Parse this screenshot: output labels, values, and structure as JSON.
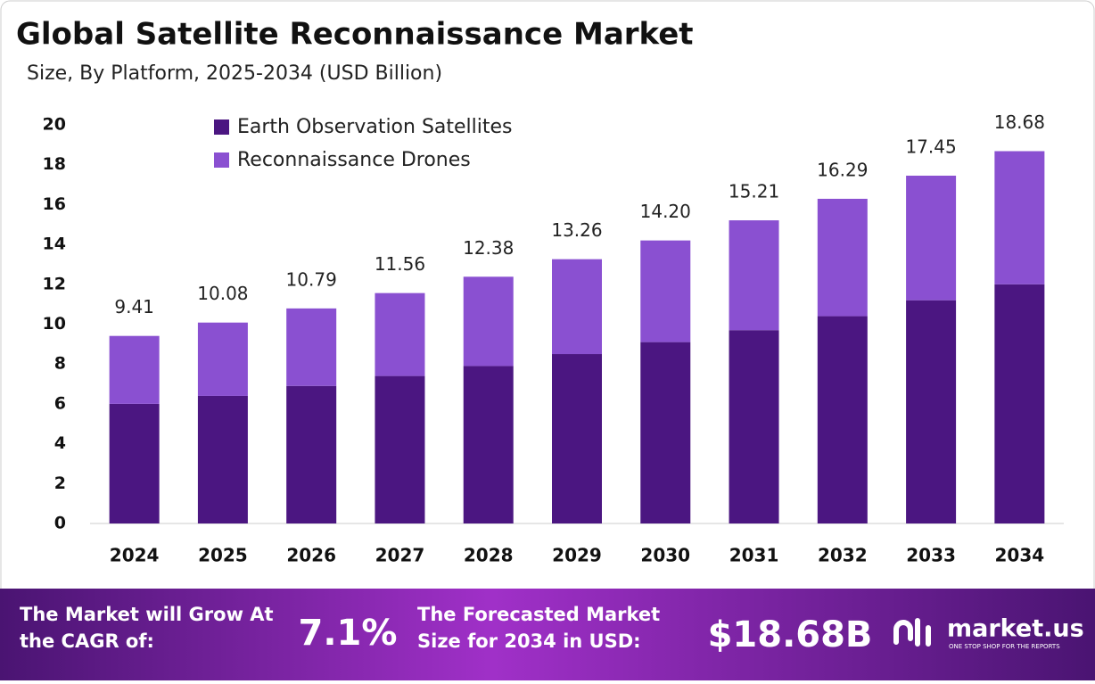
{
  "chart_data": {
    "type": "stacked_bar",
    "title": "Global Satellite Reconnaissance Market",
    "subtitle": "Size, By Platform, 2025-2034 (USD Billion)",
    "categories": [
      "2024",
      "2025",
      "2026",
      "2027",
      "2028",
      "2029",
      "2030",
      "2031",
      "2032",
      "2033",
      "2034"
    ],
    "series": [
      {
        "name": "Earth Observation Satellites",
        "color": "#4b1681",
        "values": [
          6.0,
          6.4,
          6.9,
          7.4,
          7.9,
          8.5,
          9.1,
          9.7,
          10.4,
          11.2,
          12.0
        ]
      },
      {
        "name": "Reconnaissance Drones",
        "color": "#8a50d1",
        "values": [
          3.41,
          3.68,
          3.89,
          4.16,
          4.48,
          4.76,
          5.1,
          5.51,
          5.89,
          6.25,
          6.68
        ]
      }
    ],
    "total_labels": [
      "9.41",
      "10.08",
      "10.79",
      "11.56",
      "12.38",
      "13.26",
      "14.20",
      "15.21",
      "16.29",
      "17.45",
      "18.68"
    ],
    "ylim": [
      0,
      20
    ],
    "yticks": [
      0,
      2,
      4,
      6,
      8,
      10,
      12,
      14,
      16,
      18,
      20
    ],
    "grid": false,
    "legend": "top-left"
  },
  "footer": {
    "cagr_text": "The Market will Grow At the CAGR of:",
    "cagr_value": "7.1%",
    "forecast_text": "The Forecasted Market Size for 2034 in USD:",
    "forecast_value": "$18.68B",
    "brand": "market.us",
    "tagline": "ONE STOP SHOP FOR THE REPORTS"
  }
}
